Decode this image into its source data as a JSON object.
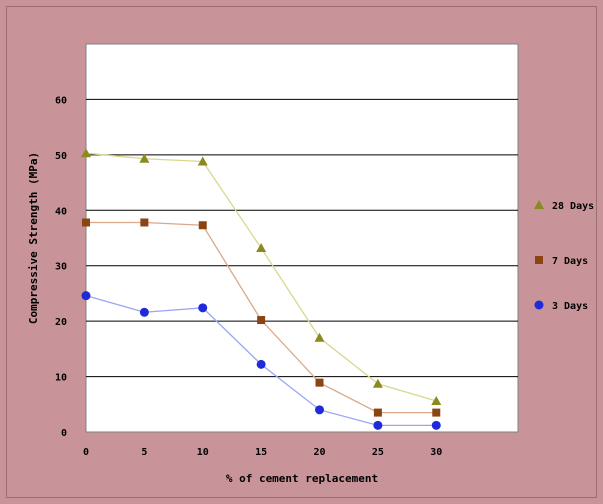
{
  "chart_data": {
    "type": "line",
    "title": "",
    "xlabel": "% of cement replacement",
    "ylabel": "Compressive Strength (MPa)",
    "x": [
      0,
      5,
      10,
      15,
      20,
      25,
      30
    ],
    "x_tick_labels": [
      "0",
      "5",
      "10",
      "15",
      "20",
      "25",
      "30"
    ],
    "xlim": [
      0,
      37
    ],
    "ylim": [
      0,
      70
    ],
    "y_ticks": [
      0,
      10,
      20,
      30,
      40,
      50,
      60
    ],
    "grid": true,
    "legend_position": "right",
    "series": [
      {
        "name": "28 Days",
        "marker": "triangle",
        "marker_color": "#8a8a1e",
        "line_color": "#d8d890",
        "values": [
          50.3,
          49.3,
          48.8,
          33.2,
          17.0,
          8.7,
          5.6
        ]
      },
      {
        "name": "7 Days",
        "marker": "square",
        "marker_color": "#8b4513",
        "line_color": "#d9a98a",
        "values": [
          37.8,
          37.8,
          37.3,
          20.2,
          8.9,
          3.5,
          3.5
        ]
      },
      {
        "name": "3 Days",
        "marker": "circle",
        "marker_color": "#1f2bd8",
        "line_color": "#9aa6f5",
        "values": [
          24.6,
          21.6,
          22.4,
          12.2,
          4.0,
          1.2,
          1.2
        ]
      }
    ]
  }
}
